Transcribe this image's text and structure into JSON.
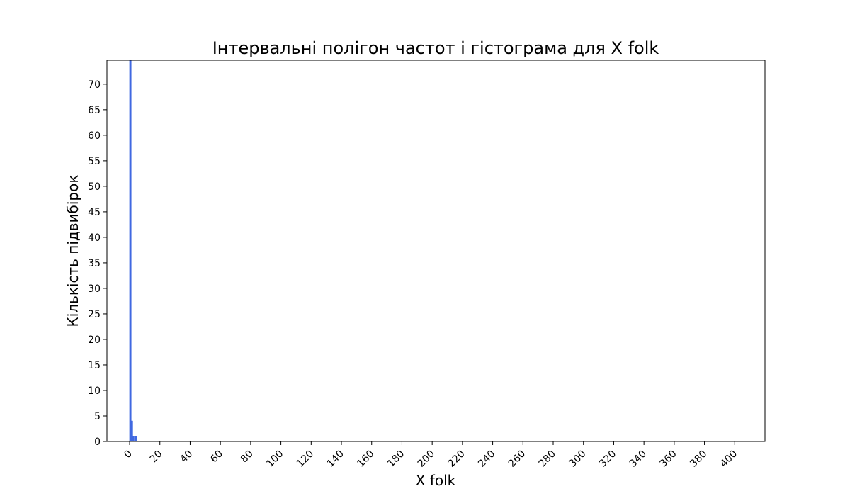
{
  "chart_data": {
    "type": "bar",
    "title": "Інтервальні полігон частот і гістограма для X folk",
    "xlabel": "X folk",
    "ylabel": "Кількість підвибірок",
    "xlim": [
      -15,
      420
    ],
    "ylim": [
      0,
      74.7
    ],
    "x_ticks": [
      0,
      20,
      40,
      60,
      80,
      100,
      120,
      140,
      160,
      180,
      200,
      220,
      240,
      260,
      280,
      300,
      320,
      340,
      360,
      380,
      400
    ],
    "x_tick_labels": [
      "0",
      "20",
      "40",
      "60",
      "80",
      "100",
      "120",
      "140",
      "160",
      "180",
      "200",
      "220",
      "240",
      "260",
      "280",
      "300",
      "320",
      "340",
      "360",
      "380",
      "400"
    ],
    "y_ticks": [
      0,
      5,
      10,
      15,
      20,
      25,
      30,
      35,
      40,
      45,
      50,
      55,
      60,
      65,
      70
    ],
    "y_tick_labels": [
      "0",
      "5",
      "10",
      "15",
      "20",
      "25",
      "30",
      "35",
      "40",
      "45",
      "50",
      "55",
      "60",
      "65",
      "70"
    ],
    "grid": false,
    "series": [
      {
        "color": "#4169e1",
        "bins": [
          {
            "x0": 0.0,
            "x1": 0.5,
            "value": 75
          },
          {
            "x0": 0.5,
            "x1": 1.0,
            "value": 75
          },
          {
            "x0": 1.0,
            "x1": 1.5,
            "value": 4
          },
          {
            "x0": 1.5,
            "x1": 2.0,
            "value": 4
          },
          {
            "x0": 2.0,
            "x1": 2.5,
            "value": 1
          },
          {
            "x0": 2.5,
            "x1": 3.0,
            "value": 1
          },
          {
            "x0": 3.0,
            "x1": 3.5,
            "value": 0
          },
          {
            "x0": 3.5,
            "x1": 4.0,
            "value": 1
          },
          {
            "x0": 4.0,
            "x1": 4.5,
            "value": 1
          }
        ]
      }
    ]
  }
}
